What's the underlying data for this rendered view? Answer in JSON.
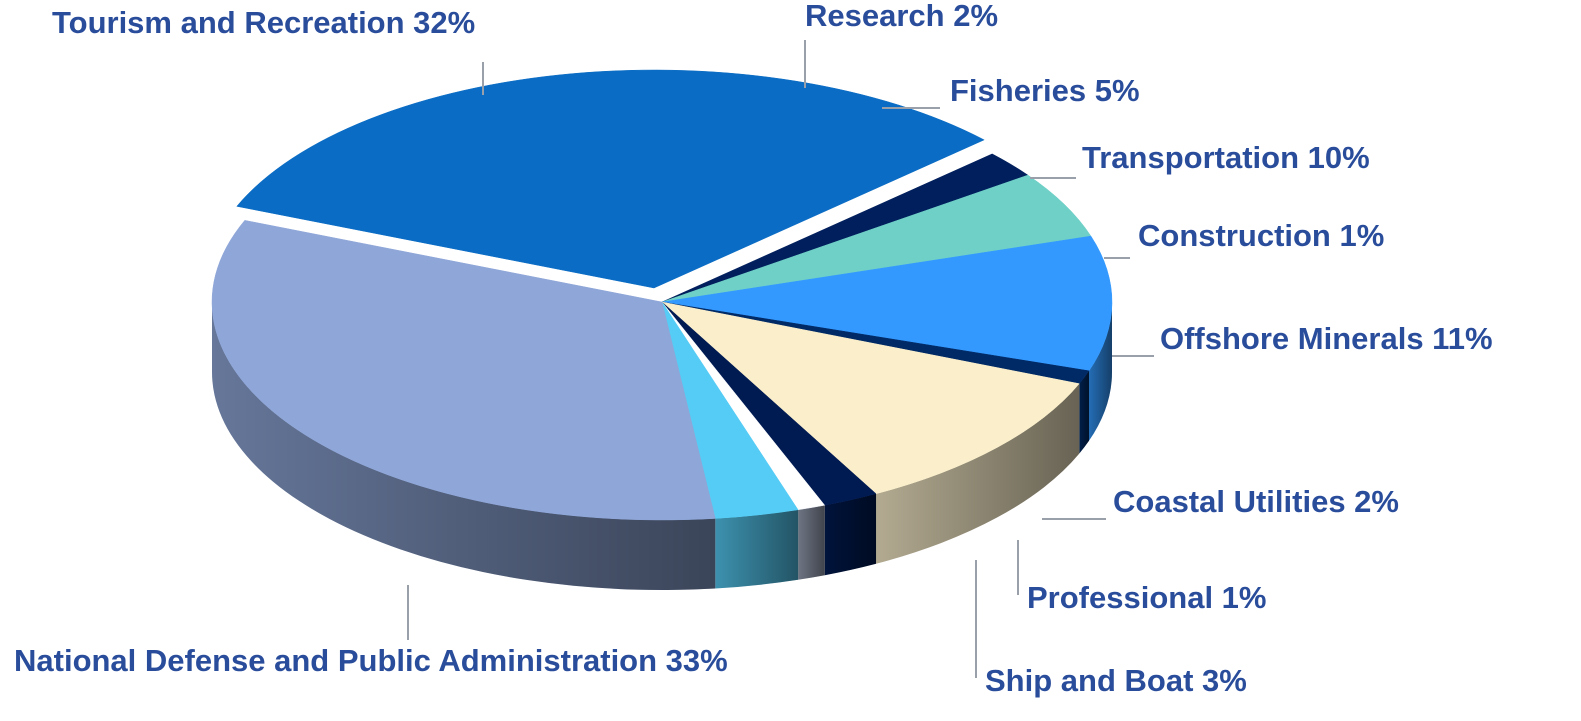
{
  "chart_data": {
    "type": "pie",
    "title": "",
    "style": "3d-exploded-tilted",
    "unit": "%",
    "legend": "none",
    "slices": [
      {
        "label": "Tourism and Recreation",
        "value": 32,
        "display": "Tourism and Recreation 32%",
        "color": "#0a6cc4"
      },
      {
        "label": "Research",
        "value": 2,
        "display": "Research 2%",
        "color": "#001f5c"
      },
      {
        "label": "Fisheries",
        "value": 5,
        "display": "Fisheries  5%",
        "color": "#6fd0c7"
      },
      {
        "label": "Transportation",
        "value": 10,
        "display": "Transportation 10%",
        "color": "#3399ff"
      },
      {
        "label": "Construction",
        "value": 1,
        "display": "Construction 1%",
        "color": "#002a66"
      },
      {
        "label": "Offshore Minerals",
        "value": 11,
        "display": "Offshore Minerals 11%",
        "color": "#fbefcb"
      },
      {
        "label": "Coastal Utilities",
        "value": 2,
        "display": "Coastal Utilities 2%",
        "color": "#001a52"
      },
      {
        "label": "Professional",
        "value": 1,
        "display": "Professional 1%",
        "color": "#ffffff"
      },
      {
        "label": "Ship and Boat",
        "value": 3,
        "display": "Ship and Boat 3%",
        "color": "#55ccf5"
      },
      {
        "label": "National Defense and Public Administration",
        "value": 33,
        "display": "National Defense and Public Administration 33%",
        "color": "#8ea6d8"
      }
    ],
    "label_color": "#2a4d9b"
  }
}
